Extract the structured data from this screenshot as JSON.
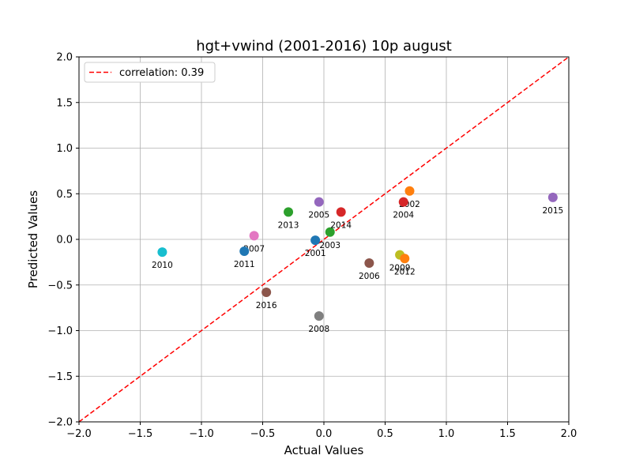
{
  "chart_data": {
    "type": "scatter",
    "title": "hgt+vwind (2001-2016) 10p august",
    "xlabel": "Actual Values",
    "ylabel": "Predicted Values",
    "xlim": [
      -2.0,
      2.0
    ],
    "ylim": [
      -2.0,
      2.0
    ],
    "grid": true,
    "x_ticks": [
      "−2.0",
      "−1.5",
      "−1.0",
      "−0.5",
      "0.0",
      "0.5",
      "1.0",
      "1.5",
      "2.0"
    ],
    "y_ticks": [
      "−2.0",
      "−1.5",
      "−1.0",
      "−0.5",
      "0.0",
      "0.5",
      "1.0",
      "1.5",
      "2.0"
    ],
    "x_tick_values": [
      -2.0,
      -1.5,
      -1.0,
      -0.5,
      0.0,
      0.5,
      1.0,
      1.5,
      2.0
    ],
    "y_tick_values": [
      -2.0,
      -1.5,
      -1.0,
      -0.5,
      0.0,
      0.5,
      1.0,
      1.5,
      2.0
    ],
    "reference_line": {
      "label": "correlation: 0.39",
      "style": "dashed",
      "color": "#ff0000",
      "from": [
        -2.0,
        -2.0
      ],
      "to": [
        2.0,
        2.0
      ]
    },
    "legend": {
      "position": "top-left"
    },
    "points": [
      {
        "year": "2001",
        "x": -0.07,
        "y": -0.01,
        "color": "#1f77b4"
      },
      {
        "year": "2002",
        "x": 0.7,
        "y": 0.53,
        "color": "#ff7f0e"
      },
      {
        "year": "2003",
        "x": 0.05,
        "y": 0.08,
        "color": "#2ca02c"
      },
      {
        "year": "2004",
        "x": 0.65,
        "y": 0.41,
        "color": "#d62728"
      },
      {
        "year": "2005",
        "x": -0.04,
        "y": 0.41,
        "color": "#9467bd"
      },
      {
        "year": "2006",
        "x": 0.37,
        "y": -0.26,
        "color": "#8c564b"
      },
      {
        "year": "2007",
        "x": -0.57,
        "y": 0.04,
        "color": "#e377c2"
      },
      {
        "year": "2008",
        "x": -0.04,
        "y": -0.84,
        "color": "#7f7f7f"
      },
      {
        "year": "2009",
        "x": 0.62,
        "y": -0.17,
        "color": "#bcbd22"
      },
      {
        "year": "2010",
        "x": -1.32,
        "y": -0.14,
        "color": "#17becf"
      },
      {
        "year": "2011",
        "x": -0.65,
        "y": -0.13,
        "color": "#1f77b4"
      },
      {
        "year": "2012",
        "x": 0.66,
        "y": -0.21,
        "color": "#ff7f0e"
      },
      {
        "year": "2013",
        "x": -0.29,
        "y": 0.3,
        "color": "#2ca02c"
      },
      {
        "year": "2014",
        "x": 0.14,
        "y": 0.3,
        "color": "#d62728"
      },
      {
        "year": "2015",
        "x": 1.87,
        "y": 0.46,
        "color": "#9467bd"
      },
      {
        "year": "2016",
        "x": -0.47,
        "y": -0.58,
        "color": "#8c564b"
      }
    ]
  }
}
